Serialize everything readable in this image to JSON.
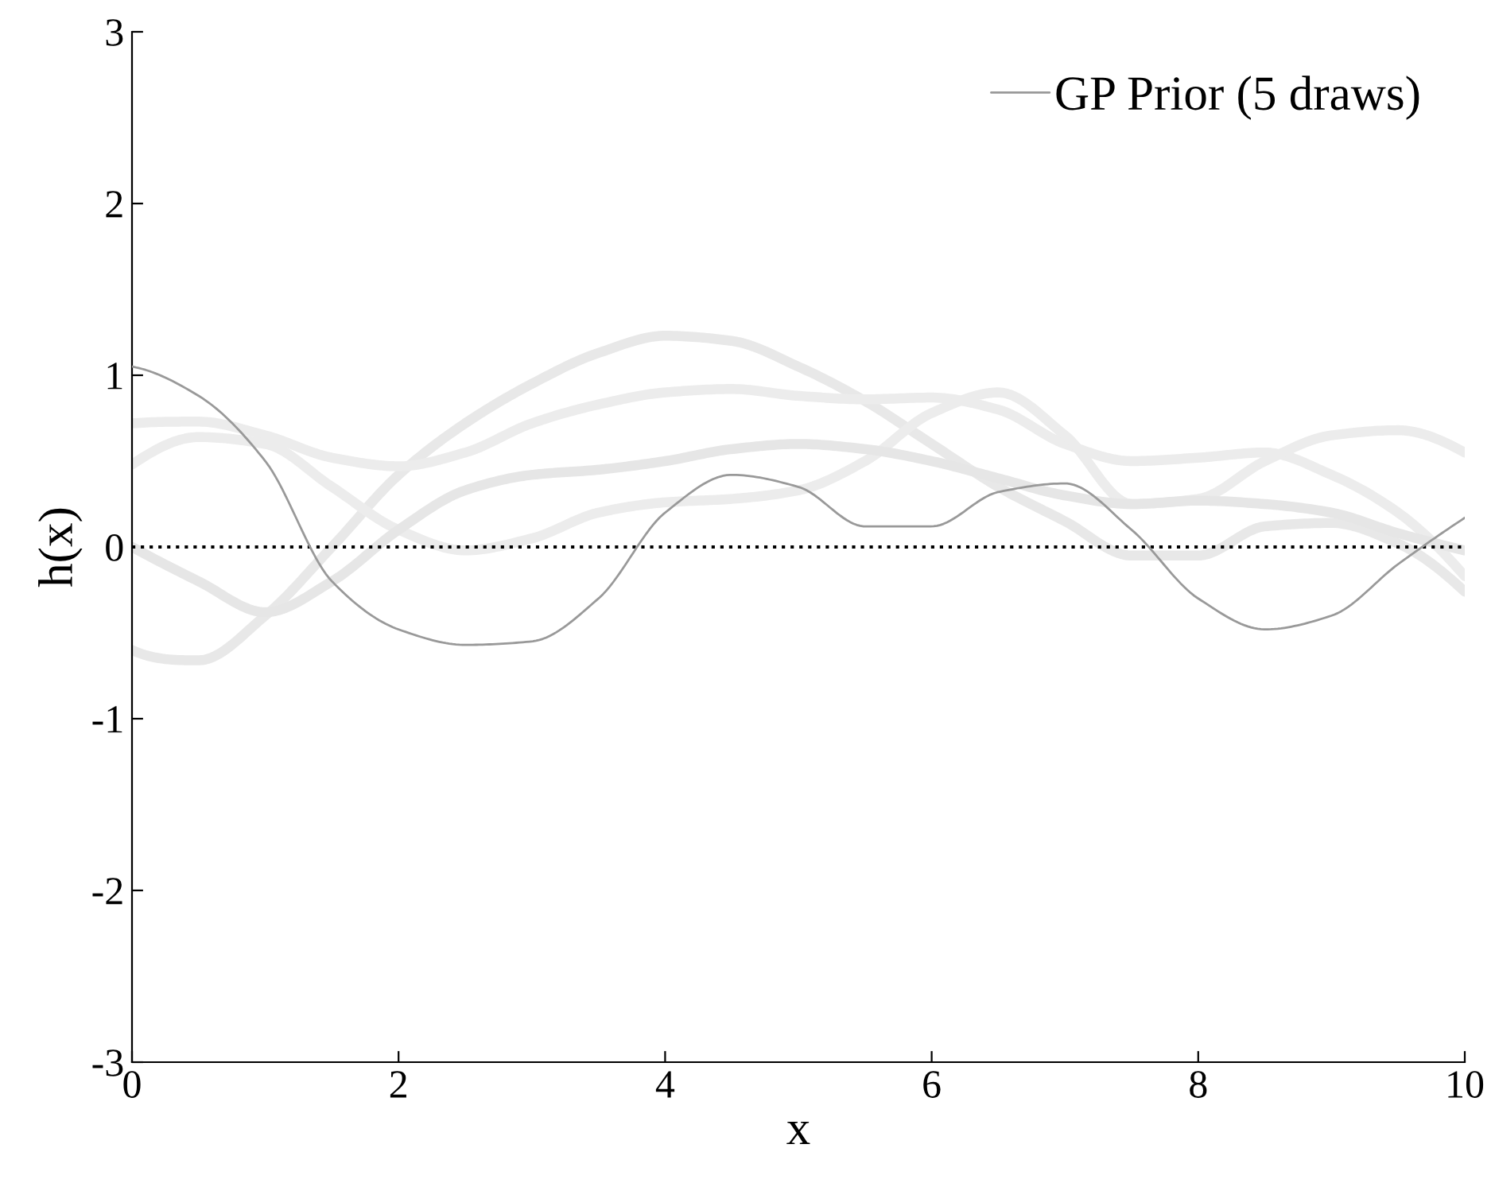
{
  "chart_data": {
    "type": "line",
    "xlabel": "x",
    "ylabel": "h(x)",
    "x": [
      0,
      0.5,
      1,
      1.5,
      2,
      2.5,
      3,
      3.5,
      4,
      4.5,
      5,
      5.5,
      6,
      6.5,
      7,
      7.5,
      8,
      8.5,
      9,
      9.5,
      10
    ],
    "series": [
      {
        "color": "#e8e8e8",
        "values": [
          -0.6,
          -0.66,
          -0.4,
          0.0,
          0.42,
          0.72,
          0.95,
          1.13,
          1.23,
          1.2,
          1.05,
          0.85,
          0.6,
          0.35,
          0.15,
          -0.05,
          -0.05,
          0.12,
          0.14,
          0.02,
          -0.26
        ]
      },
      {
        "color": "#ececec",
        "values": [
          0.72,
          0.73,
          0.65,
          0.52,
          0.47,
          0.55,
          0.72,
          0.83,
          0.9,
          0.92,
          0.88,
          0.86,
          0.87,
          0.8,
          0.6,
          0.5,
          0.52,
          0.55,
          0.42,
          0.2,
          -0.17
        ]
      },
      {
        "color": "#ececec",
        "values": [
          0.48,
          0.64,
          0.6,
          0.35,
          0.1,
          -0.02,
          0.05,
          0.2,
          0.26,
          0.28,
          0.33,
          0.5,
          0.78,
          0.9,
          0.65,
          0.25,
          0.28,
          0.5,
          0.65,
          0.68,
          0.55
        ]
      },
      {
        "color": "#e6e6e6",
        "values": [
          0.0,
          -0.2,
          -0.38,
          -0.2,
          0.1,
          0.33,
          0.42,
          0.45,
          0.5,
          0.57,
          0.6,
          0.57,
          0.5,
          0.4,
          0.3,
          0.25,
          0.27,
          0.25,
          0.2,
          0.08,
          -0.02
        ]
      },
      {
        "name": "GP Prior (5 draws)",
        "color": "#999999",
        "values": [
          1.05,
          0.88,
          0.5,
          -0.2,
          -0.48,
          -0.57,
          -0.55,
          -0.3,
          0.2,
          0.42,
          0.35,
          0.12,
          0.12,
          0.32,
          0.37,
          0.1,
          -0.3,
          -0.48,
          -0.4,
          -0.1,
          0.17
        ]
      }
    ],
    "xlim": [
      0,
      10
    ],
    "xticks": [
      0,
      2,
      4,
      6,
      8,
      10
    ],
    "ylim": [
      -3,
      3
    ],
    "yticks": [
      -3,
      -2,
      -1,
      0,
      1,
      2,
      3
    ],
    "ref_lines": [
      {
        "axis": "y",
        "value": 0,
        "color": "#000000",
        "line_style": "dotted"
      }
    ],
    "grid": false,
    "legend": "top right",
    "marker": "none",
    "line_style": "solid"
  }
}
